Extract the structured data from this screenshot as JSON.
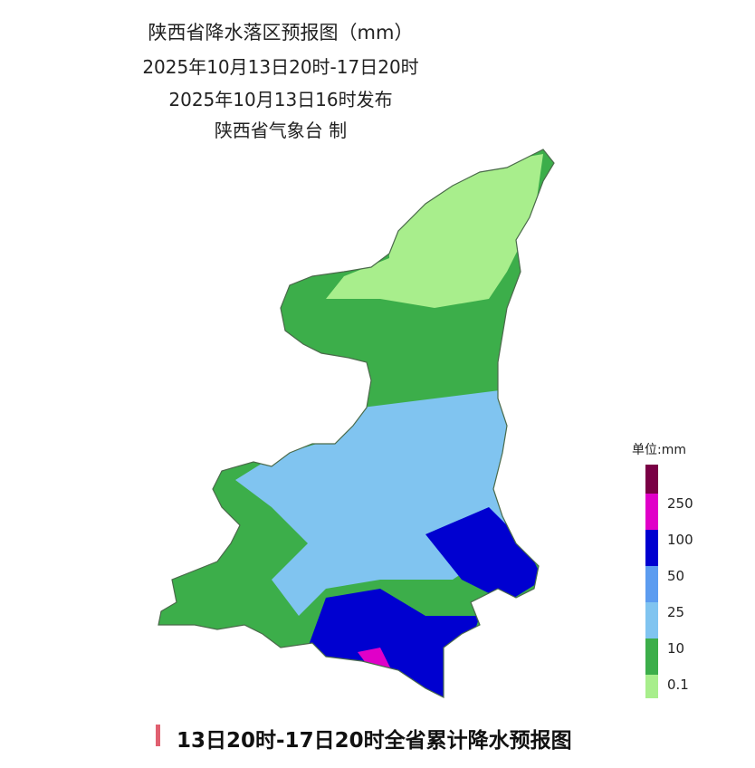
{
  "header": {
    "title": "陕西省降水落区预报图（mm）",
    "period": "2025年10月13日20时-17日20时",
    "issued": "2025年10月13日16时发布",
    "issuer": "陕西省气象台 制"
  },
  "legend": {
    "unit": "单位:mm",
    "labels": [
      250,
      100,
      50,
      25,
      10,
      0.1
    ],
    "colors": [
      "#7a0045",
      "#e000c8",
      "#0000d0",
      "#5c9cf0",
      "#80c4f0",
      "#3cae4a",
      "#a8ee8c"
    ]
  },
  "caption": "13日20时-17日20时全省累计降水预报图"
}
